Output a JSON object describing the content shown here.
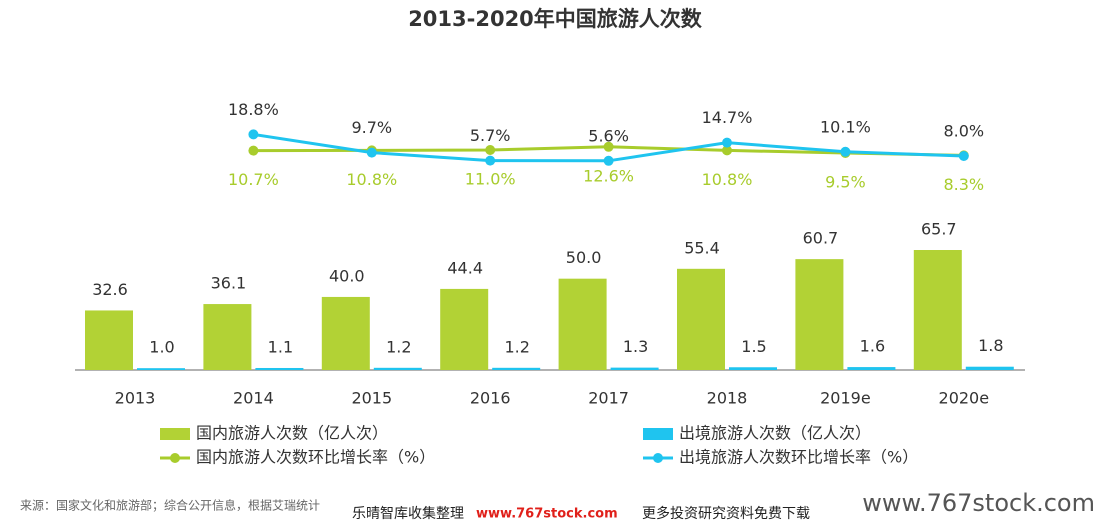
{
  "chart_data": {
    "type": "bar",
    "title": "2013-2020年中国旅游人次数",
    "categories": [
      "2013",
      "2014",
      "2015",
      "2016",
      "2017",
      "2018",
      "2019e",
      "2020e"
    ],
    "series": [
      {
        "name": "国内旅游人次数（亿人次）",
        "color": "#b2d235",
        "values": [
          32.6,
          36.1,
          40.0,
          44.4,
          50.0,
          55.4,
          60.7,
          65.7
        ],
        "value_labels": [
          "32.6",
          "36.1",
          "40.0",
          "44.4",
          "50.0",
          "55.4",
          "60.7",
          "65.7"
        ]
      },
      {
        "name": "出境旅游人次数（亿人次）",
        "color": "#1fc4ef",
        "values": [
          1.0,
          1.1,
          1.2,
          1.2,
          1.3,
          1.5,
          1.6,
          1.8
        ],
        "value_labels": [
          "1.0",
          "1.1",
          "1.2",
          "1.2",
          "1.3",
          "1.5",
          "1.6",
          "1.8"
        ]
      },
      {
        "name": "国内旅游人次数环比增长率（%）",
        "type": "line",
        "color": "#a8cc2c",
        "values": [
          null,
          10.7,
          10.8,
          11.0,
          12.6,
          10.8,
          9.5,
          8.3
        ],
        "value_labels": [
          null,
          "10.7%",
          "10.8%",
          "11.0%",
          "12.6%",
          "10.8%",
          "9.5%",
          "8.3%"
        ]
      },
      {
        "name": "出境旅游人次数环比增长率（%）",
        "type": "line",
        "color": "#1fc4ef",
        "values": [
          null,
          18.8,
          9.7,
          5.7,
          5.6,
          14.7,
          10.1,
          8.0
        ],
        "value_labels": [
          null,
          "18.8%",
          "9.7%",
          "5.7%",
          "5.6%",
          "14.7%",
          "10.1%",
          "8.0%"
        ]
      }
    ],
    "source": "来源：国家文化和旅游部；综合公开信息，根据艾瑞统计",
    "watermark": "乐晴智库收集整理",
    "watermark_url": "www.767stock.com",
    "watermark_note": "更多投资研究资料免费下载",
    "site": "www.767stock.com"
  }
}
